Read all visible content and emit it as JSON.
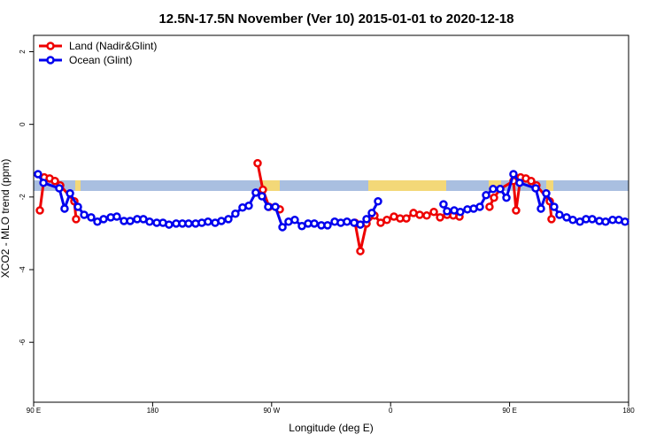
{
  "chart_data": {
    "type": "line",
    "title": "12.5N-17.5N November (Ver 10)   2015-01-01 to 2020-12-18",
    "x_label": "Longitude (deg E)",
    "y_label": "XCO2 - MLO trend (ppm)",
    "xlim": [
      90,
      540
    ],
    "ylim": [
      -7.65,
      2.45
    ],
    "xticks": [
      {
        "value": 90,
        "label": "90 E"
      },
      180,
      {
        "value": 270,
        "label": "90 W"
      },
      {
        "value": 360,
        "label": "0"
      },
      {
        "value": 450,
        "label": "90 E"
      },
      {
        "value": 540,
        "label": "180"
      }
    ],
    "yticks": [
      2,
      0,
      -2,
      -4,
      -6
    ],
    "legend": "top-left",
    "series": [
      {
        "name": "Land (Nadir&Glint)",
        "color": "#ee0000",
        "x": [
          94.7,
          98.0,
          102.1,
          106.1,
          110.1,
          120.8,
          122.1,
          null,
          259.4,
          263.4,
          268.1,
          276.2,
          null,
          333.1,
          337.1,
          341.8,
          347.8,
          352.5,
          357.2,
          362.5,
          367.2,
          371.9,
          377.3,
          382.0,
          387.3,
          392.7,
          397.4,
          402.7,
          407.4,
          412.1,
          null,
          434.8,
          438.2,
          442.9,
          452.9,
          454.9,
          458.3,
          462.3,
          466.3,
          470.3,
          480.4,
          481.7
        ],
        "values": [
          -2.37,
          -1.46,
          -1.49,
          -1.56,
          -1.68,
          -2.12,
          -2.61,
          null,
          -1.07,
          -1.8,
          -2.27,
          -2.34,
          null,
          -2.71,
          -3.49,
          -2.73,
          -2.51,
          -2.71,
          -2.63,
          -2.54,
          -2.59,
          -2.59,
          -2.44,
          -2.49,
          -2.51,
          -2.41,
          -2.56,
          -2.49,
          -2.51,
          -2.54,
          null,
          -2.27,
          -2.02,
          -1.78,
          -1.56,
          -2.37,
          -1.46,
          -1.49,
          -1.56,
          -1.68,
          -2.12,
          -2.61
        ]
      },
      {
        "name": "Ocean (Glint)",
        "color": "#0000ee",
        "x": [
          93.3,
          97.4,
          109.4,
          113.4,
          117.5,
          123.5,
          128.2,
          133.5,
          138.2,
          142.9,
          148.3,
          152.9,
          158.3,
          163.0,
          168.3,
          173.0,
          177.7,
          183.1,
          187.8,
          192.4,
          197.8,
          202.5,
          207.2,
          212.5,
          217.2,
          221.9,
          227.3,
          232.0,
          237.3,
          242.6,
          248.0,
          252.7,
          258.0,
          262.7,
          267.4,
          272.8,
          278.2,
          282.8,
          287.5,
          292.9,
          297.6,
          302.3,
          307.6,
          312.3,
          317.7,
          322.3,
          327.0,
          332.4,
          337.1,
          341.8,
          345.8,
          350.5,
          null,
          400.0,
          402.7,
          408.1,
          412.7,
          418.1,
          422.8,
          427.5,
          432.2,
          437.5,
          442.9,
          447.6,
          452.9,
          457.6,
          469.7,
          473.7,
          477.7,
          483.7,
          487.7,
          493.1,
          497.8,
          503.2,
          507.8,
          512.5,
          517.9,
          522.6,
          527.9,
          532.6,
          537.3
        ],
        "values": [
          -1.37,
          -1.61,
          -1.76,
          -2.32,
          -1.9,
          -2.27,
          -2.49,
          -2.56,
          -2.68,
          -2.61,
          -2.56,
          -2.54,
          -2.66,
          -2.66,
          -2.61,
          -2.61,
          -2.68,
          -2.71,
          -2.71,
          -2.76,
          -2.73,
          -2.73,
          -2.73,
          -2.73,
          -2.71,
          -2.68,
          -2.71,
          -2.66,
          -2.61,
          -2.46,
          -2.29,
          -2.24,
          -1.88,
          -1.98,
          -2.27,
          -2.27,
          -2.83,
          -2.68,
          -2.63,
          -2.8,
          -2.73,
          -2.73,
          -2.78,
          -2.78,
          -2.68,
          -2.71,
          -2.68,
          -2.71,
          -2.76,
          -2.61,
          -2.44,
          -2.12,
          null,
          -2.2,
          -2.39,
          -2.37,
          -2.41,
          -2.34,
          -2.32,
          -2.27,
          -1.95,
          -1.78,
          -1.78,
          -2.02,
          -1.37,
          -1.61,
          -1.76,
          -2.32,
          -1.9,
          -2.27,
          -2.49,
          -2.56,
          -2.63,
          -2.68,
          -2.61,
          -2.61,
          -2.66,
          -2.68,
          -2.63,
          -2.63,
          -2.68
        ]
      }
    ]
  }
}
